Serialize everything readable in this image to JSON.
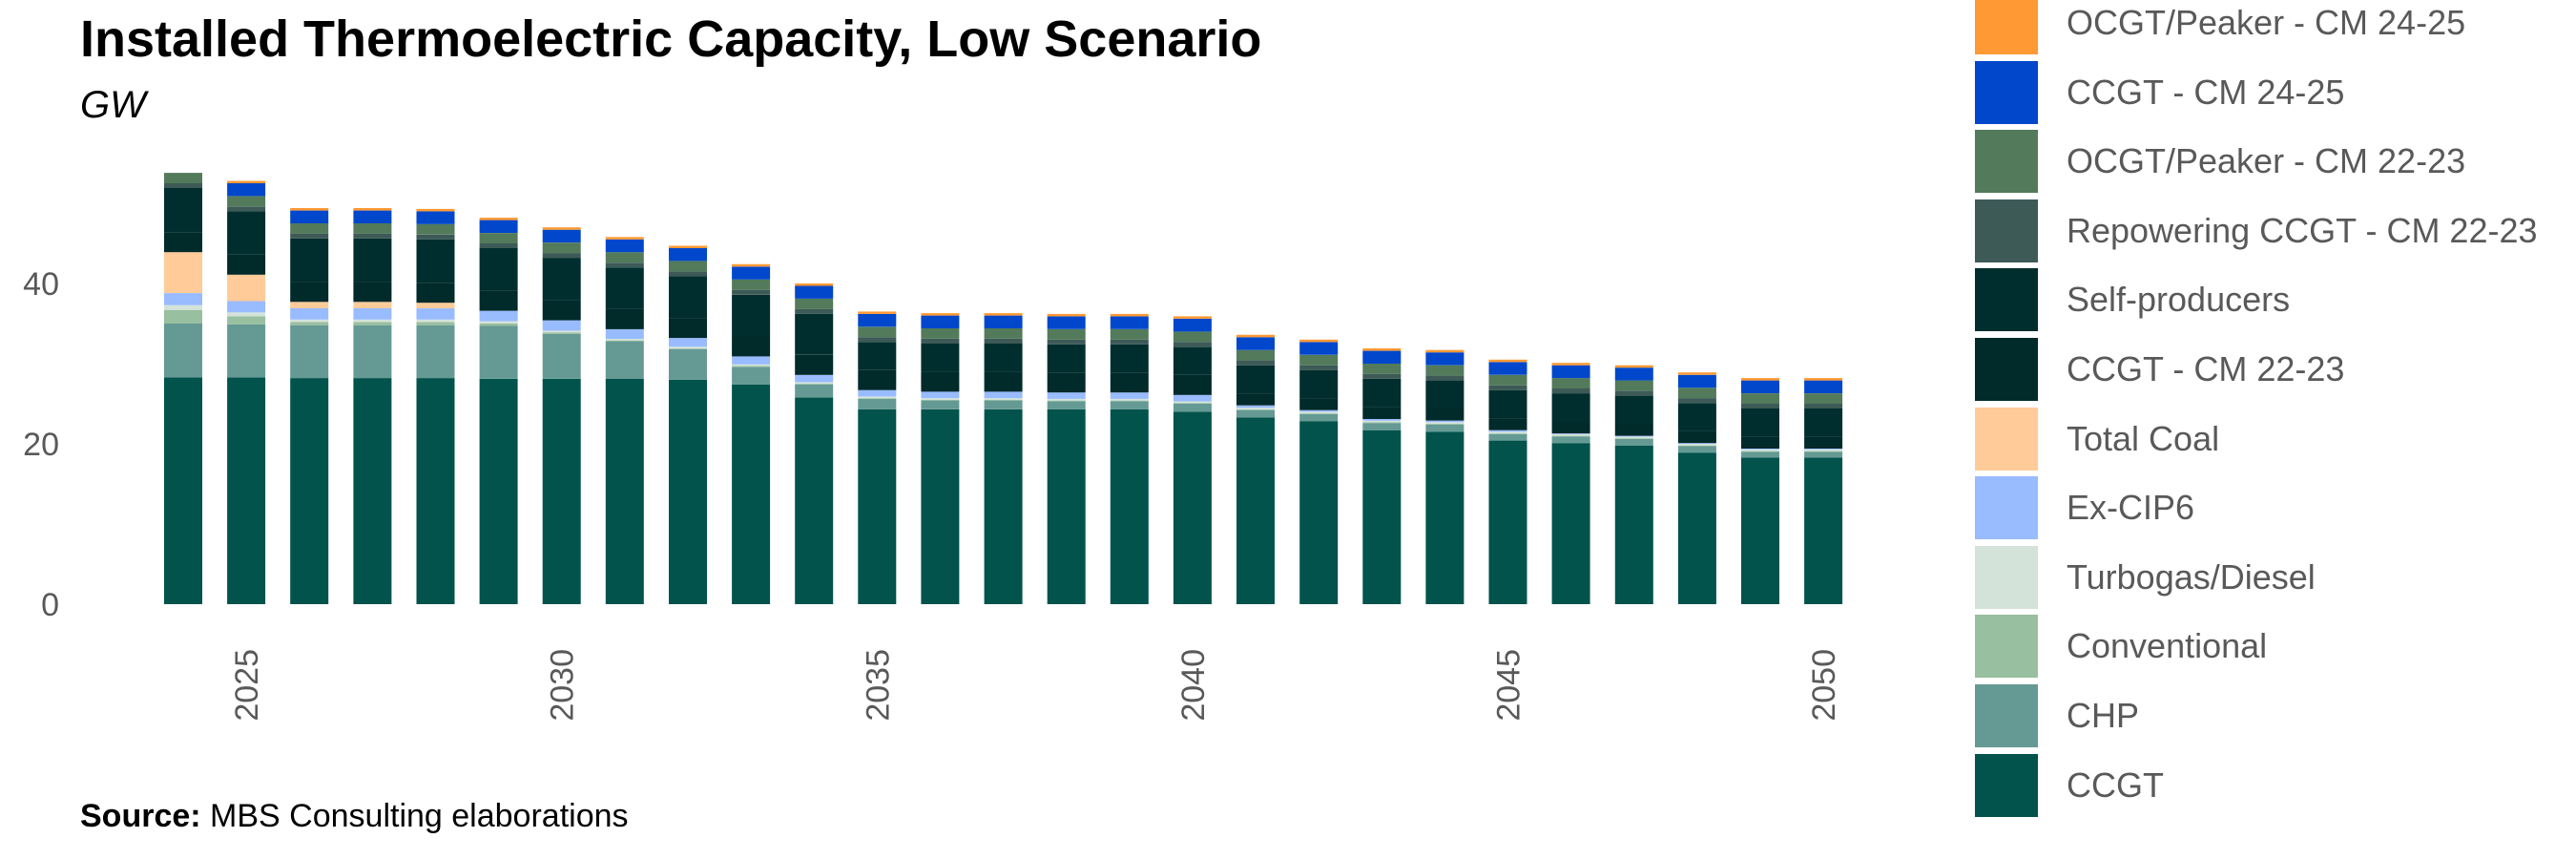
{
  "title": "Installed Thermoelectric Capacity, Low Scenario",
  "subtitle": "GW",
  "source": {
    "label": "Source:",
    "text": "MBS Consulting elaborations"
  },
  "legend": {
    "placement": "right"
  },
  "colors": {
    "CCGT": "#01534c",
    "CHP": "#659a94",
    "Conventional": "#98bfa0",
    "Turbogas/Diesel": "#d4e3d9",
    "Ex-CIP6": "#99bbff",
    "Total Coal": "#ffcb99",
    "CCGT - CM 22-23": "#012a2a",
    "Self-producers": "#002e2e",
    "Repowering CCGT - CM 22-23": "#3d5a57",
    "OCGT/Peaker - CM 22-23": "#527a5b",
    "CCGT - CM 24-25": "#0047cc",
    "OCGT/Peaker - CM 24-25": "#ff9933"
  },
  "chart_data": {
    "type": "bar",
    "stacked": true,
    "title": "Installed Thermoelectric Capacity, Low Scenario",
    "ylabel": "GW",
    "ylim": [
      0,
      56
    ],
    "yticks": [
      0,
      20,
      40
    ],
    "xticks": [
      2025,
      2030,
      2035,
      2040,
      2045,
      2050
    ],
    "grid": false,
    "legend_order": [
      "OCGT/Peaker - CM 24-25",
      "CCGT - CM 24-25",
      "OCGT/Peaker - CM 22-23",
      "Repowering CCGT - CM 22-23",
      "Self-producers",
      "CCGT - CM 22-23",
      "Total Coal",
      "Ex-CIP6",
      "Turbogas/Diesel",
      "Conventional",
      "CHP",
      "CCGT"
    ],
    "categories": [
      2024,
      2025,
      2026,
      2027,
      2028,
      2029,
      2030,
      2031,
      2032,
      2033,
      2034,
      2035,
      2036,
      2037,
      2038,
      2039,
      2040,
      2041,
      2042,
      2043,
      2044,
      2045,
      2046,
      2047,
      2048,
      2049,
      2050
    ],
    "series": [
      {
        "name": "CCGT",
        "values": [
          28.3,
          28.3,
          28.2,
          28.2,
          28.2,
          28.1,
          28.1,
          28.1,
          28.0,
          27.4,
          25.8,
          24.3,
          24.3,
          24.3,
          24.3,
          24.3,
          24.0,
          23.3,
          22.8,
          21.7,
          21.5,
          20.4,
          20.1,
          19.8,
          18.9,
          18.3,
          18.3
        ]
      },
      {
        "name": "CHP",
        "values": [
          6.7,
          6.6,
          6.6,
          6.6,
          6.6,
          6.6,
          5.6,
          4.7,
          3.8,
          2.2,
          1.6,
          1.3,
          1.1,
          1.1,
          1.0,
          1.0,
          1.0,
          0.9,
          0.9,
          0.9,
          0.9,
          0.8,
          0.8,
          0.8,
          0.8,
          0.7,
          0.7
        ]
      },
      {
        "name": "Conventional",
        "values": [
          1.7,
          1.0,
          0.4,
          0.4,
          0.4,
          0.3,
          0.2,
          0.1,
          0.1,
          0.1,
          0.1,
          0.1,
          0.1,
          0.1,
          0.1,
          0.1,
          0.1,
          0.1,
          0.1,
          0.1,
          0.1,
          0.1,
          0.1,
          0.1,
          0.1,
          0.1,
          0.1
        ]
      },
      {
        "name": "Turbogas/Diesel",
        "values": [
          0.6,
          0.5,
          0.3,
          0.3,
          0.3,
          0.3,
          0.2,
          0.2,
          0.2,
          0.2,
          0.2,
          0.2,
          0.2,
          0.2,
          0.2,
          0.2,
          0.2,
          0.2,
          0.2,
          0.2,
          0.2,
          0.2,
          0.2,
          0.2,
          0.2,
          0.2,
          0.2
        ]
      },
      {
        "name": "Ex-CIP6",
        "values": [
          1.5,
          1.4,
          1.4,
          1.4,
          1.4,
          1.3,
          1.3,
          1.2,
          1.1,
          1.0,
          0.9,
          0.8,
          0.8,
          0.8,
          0.8,
          0.8,
          0.8,
          0.3,
          0.2,
          0.2,
          0.2,
          0.2,
          0.1,
          0.1,
          0.1,
          0.1,
          0.1
        ]
      },
      {
        "name": "Total Coal",
        "values": [
          5.1,
          3.3,
          0.8,
          0.8,
          0.7,
          0.0,
          0.0,
          0.0,
          0.0,
          0.0,
          0.0,
          0.0,
          0.0,
          0.0,
          0.0,
          0.0,
          0.0,
          0.0,
          0.0,
          0.0,
          0.0,
          0.0,
          0.0,
          0.0,
          0.0,
          0.0,
          0.0
        ]
      },
      {
        "name": "CCGT - CM 22-23",
        "values": [
          2.5,
          2.5,
          2.5,
          2.5,
          2.5,
          2.5,
          2.5,
          2.5,
          2.5,
          2.5,
          2.5,
          2.5,
          2.5,
          2.5,
          2.5,
          2.5,
          2.5,
          1.5,
          1.5,
          1.5,
          1.5,
          1.5,
          1.5,
          1.5,
          1.5,
          1.5,
          1.5
        ]
      },
      {
        "name": "Self-producers",
        "values": [
          5.5,
          5.4,
          5.4,
          5.4,
          5.4,
          5.3,
          5.3,
          5.2,
          5.2,
          5.2,
          5.1,
          3.5,
          3.5,
          3.5,
          3.5,
          3.5,
          3.5,
          3.5,
          3.5,
          3.5,
          3.5,
          3.5,
          3.5,
          3.5,
          3.5,
          3.5,
          3.5
        ]
      },
      {
        "name": "Repowering CCGT - CM 22-23",
        "values": [
          0.6,
          0.6,
          0.6,
          0.6,
          0.6,
          0.6,
          0.6,
          0.6,
          0.6,
          0.6,
          0.6,
          0.6,
          0.6,
          0.6,
          0.6,
          0.6,
          0.6,
          0.6,
          0.6,
          0.6,
          0.6,
          0.6,
          0.6,
          0.6,
          0.6,
          0.6,
          0.6
        ]
      },
      {
        "name": "OCGT/Peaker - CM 22-23",
        "values": [
          1.3,
          1.3,
          1.3,
          1.3,
          1.3,
          1.3,
          1.3,
          1.3,
          1.3,
          1.3,
          1.3,
          1.3,
          1.3,
          1.3,
          1.3,
          1.3,
          1.3,
          1.3,
          1.3,
          1.3,
          1.3,
          1.3,
          1.3,
          1.3,
          1.3,
          1.3,
          1.3
        ]
      },
      {
        "name": "CCGT - CM 24-25",
        "values": [
          0.0,
          1.6,
          1.6,
          1.6,
          1.6,
          1.6,
          1.6,
          1.6,
          1.6,
          1.6,
          1.6,
          1.6,
          1.6,
          1.6,
          1.6,
          1.6,
          1.6,
          1.6,
          1.6,
          1.6,
          1.6,
          1.6,
          1.6,
          1.6,
          1.6,
          1.6,
          1.6
        ]
      },
      {
        "name": "OCGT/Peaker - CM 24-25",
        "values": [
          0.0,
          0.3,
          0.3,
          0.3,
          0.3,
          0.3,
          0.3,
          0.3,
          0.3,
          0.3,
          0.3,
          0.3,
          0.3,
          0.3,
          0.3,
          0.3,
          0.3,
          0.3,
          0.3,
          0.3,
          0.3,
          0.3,
          0.3,
          0.3,
          0.3,
          0.3,
          0.3
        ]
      }
    ]
  }
}
